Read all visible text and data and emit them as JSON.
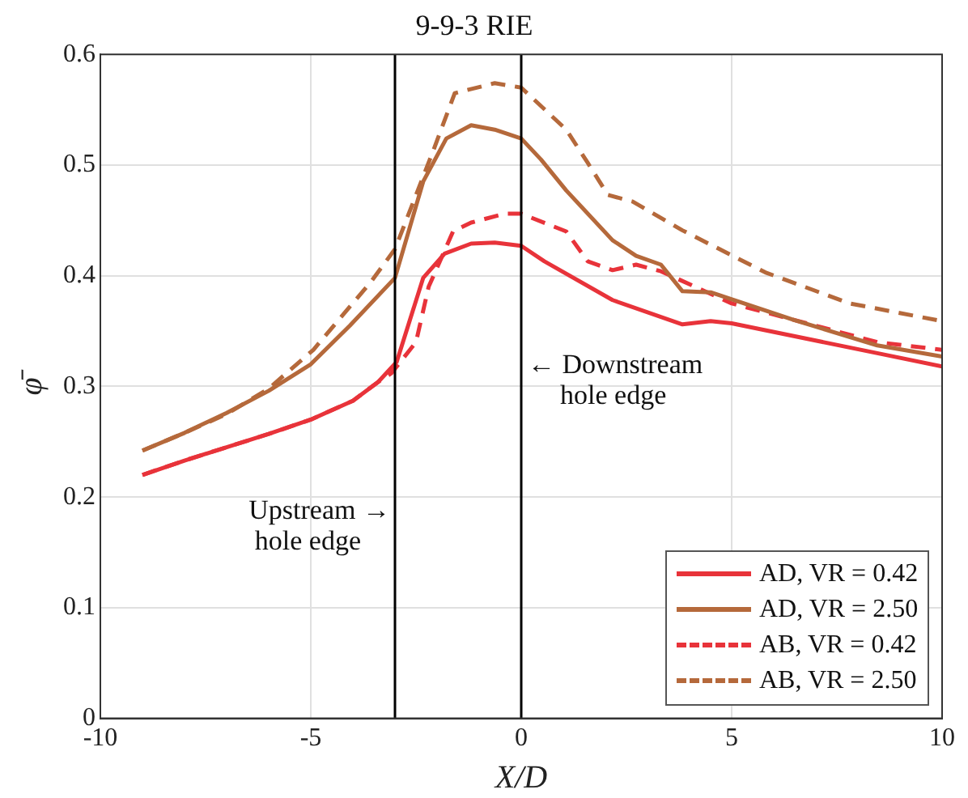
{
  "chart_data": {
    "type": "line",
    "title": "9-9-3 RIE",
    "xlabel": "X/D",
    "ylabel": "φ̄",
    "xlim": [
      -10,
      10
    ],
    "xticks": [
      -10,
      -5,
      0,
      5,
      10
    ],
    "ylim": [
      0,
      0.6
    ],
    "yticks": [
      0,
      0.1,
      0.2,
      0.3,
      0.4,
      0.5,
      0.6
    ],
    "grid": true,
    "legend": "bottom right",
    "marker": "none",
    "series": [
      {
        "name": "AD, VR = 0.42",
        "color": "#e8333a",
        "line_style": "solid",
        "x": [
          -9,
          -8,
          -7,
          -6,
          -5,
          -4,
          -3.4,
          -2.96,
          -2.33,
          -1.82,
          -1.19,
          -0.63,
          0,
          0.55,
          2.17,
          3.83,
          4.5,
          5,
          8.46,
          10
        ],
        "values": [
          0.22,
          0.233,
          0.245,
          0.257,
          0.27,
          0.287,
          0.304,
          0.322,
          0.398,
          0.42,
          0.429,
          0.43,
          0.427,
          0.413,
          0.378,
          0.356,
          0.359,
          0.357,
          0.33,
          0.318
        ]
      },
      {
        "name": "AD, VR = 2.50",
        "color": "#b5693b",
        "line_style": "solid",
        "x": [
          -9,
          -8,
          -7,
          -6,
          -5,
          -4.07,
          -3,
          -2.33,
          -1.78,
          -1.19,
          -0.63,
          0,
          0.47,
          1.07,
          2.17,
          2.73,
          3.32,
          3.83,
          4.5,
          6.48,
          8.46,
          10
        ],
        "values": [
          0.242,
          0.258,
          0.276,
          0.296,
          0.32,
          0.355,
          0.398,
          0.485,
          0.524,
          0.536,
          0.532,
          0.524,
          0.505,
          0.477,
          0.432,
          0.418,
          0.41,
          0.386,
          0.385,
          0.36,
          0.337,
          0.327
        ]
      },
      {
        "name": "AB, VR = 0.42",
        "color": "#e8333a",
        "line_style": "dashed",
        "x": [
          -9,
          -8,
          -7,
          -6,
          -5,
          -4,
          -3.4,
          -3.08,
          -2.5,
          -2.2,
          -1.62,
          -1.19,
          -0.4,
          0,
          1.07,
          1.58,
          2.17,
          2.73,
          3.32,
          5,
          8.46,
          10
        ],
        "values": [
          0.22,
          0.233,
          0.245,
          0.257,
          0.27,
          0.287,
          0.304,
          0.312,
          0.34,
          0.39,
          0.44,
          0.448,
          0.456,
          0.456,
          0.44,
          0.413,
          0.405,
          0.41,
          0.404,
          0.375,
          0.34,
          0.333
        ]
      },
      {
        "name": "AB, VR = 2.50",
        "color": "#b5693b",
        "line_style": "dashed",
        "x": [
          -9,
          -8,
          -7,
          -6,
          -4.94,
          -3.56,
          -3,
          -2.1,
          -1.58,
          -0.63,
          0,
          1.07,
          1.58,
          2.06,
          2.65,
          3.83,
          5.8,
          7.8,
          10
        ],
        "values": [
          0.242,
          0.258,
          0.275,
          0.298,
          0.333,
          0.395,
          0.424,
          0.512,
          0.565,
          0.574,
          0.57,
          0.532,
          0.502,
          0.473,
          0.467,
          0.441,
          0.403,
          0.375,
          0.359
        ]
      }
    ],
    "ref_lines": [
      {
        "axis": "x",
        "value": -3,
        "label": "Upstream →\nhole edge",
        "color": "#000000"
      },
      {
        "axis": "x",
        "value": 0,
        "label": "← Downstream\nhole edge",
        "color": "#000000"
      }
    ]
  }
}
